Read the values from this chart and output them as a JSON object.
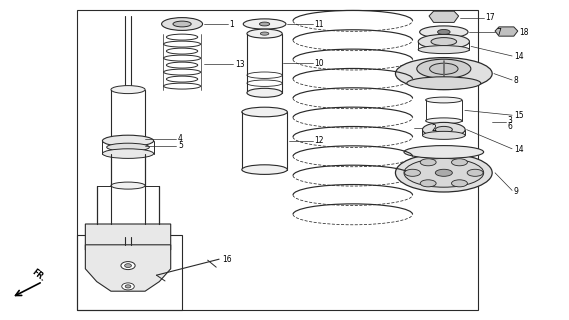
{
  "bg_color": "#ffffff",
  "line_color": "#2a2a2a",
  "fig_w": 5.69,
  "fig_h": 3.2,
  "dpi": 100,
  "border_main": [
    0.135,
    0.03,
    0.84,
    0.97
  ],
  "border_lower": [
    0.135,
    0.03,
    0.35,
    0.26
  ]
}
